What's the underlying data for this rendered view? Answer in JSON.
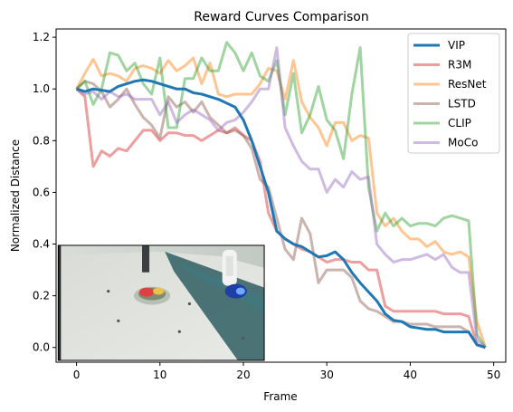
{
  "chart_data": {
    "type": "line",
    "title": "Reward Curves Comparison",
    "xlabel": "Frame",
    "ylabel": "Normalized Distance",
    "xlim": [
      -2.45,
      51.45
    ],
    "ylim": [
      -0.057,
      1.232
    ],
    "xticks": [
      0,
      10,
      20,
      30,
      40,
      50
    ],
    "yticks": [
      0.0,
      0.2,
      0.4,
      0.6,
      0.8,
      1.0,
      1.2
    ],
    "legend_position": "top-right",
    "grid": false,
    "inset_image": {
      "description": "robot arm with fruit plate on white table",
      "x_range": [
        -2.2,
        22.5
      ],
      "y_range": [
        -0.05,
        0.395
      ]
    },
    "x": [
      0,
      1,
      2,
      3,
      4,
      5,
      6,
      7,
      8,
      9,
      10,
      11,
      12,
      13,
      14,
      15,
      16,
      17,
      18,
      19,
      20,
      21,
      22,
      23,
      24,
      25,
      26,
      27,
      28,
      29,
      30,
      31,
      32,
      33,
      34,
      35,
      36,
      37,
      38,
      39,
      40,
      41,
      42,
      43,
      44,
      45,
      46,
      47,
      48,
      49
    ],
    "series": [
      {
        "name": "VIP",
        "color": "#1f77b4",
        "opacity": 1.0,
        "width": 3,
        "values": [
          1.0,
          0.99,
          1.0,
          0.995,
          0.99,
          1.01,
          1.02,
          1.03,
          1.035,
          1.03,
          1.02,
          1.01,
          1.0,
          1.0,
          0.985,
          0.98,
          0.97,
          0.96,
          0.945,
          0.93,
          0.88,
          0.8,
          0.7,
          0.6,
          0.45,
          0.42,
          0.4,
          0.39,
          0.37,
          0.35,
          0.355,
          0.37,
          0.34,
          0.29,
          0.25,
          0.215,
          0.18,
          0.13,
          0.105,
          0.1,
          0.08,
          0.075,
          0.07,
          0.07,
          0.06,
          0.06,
          0.06,
          0.06,
          0.01,
          0.0
        ]
      },
      {
        "name": "R3M",
        "color": "#d62728",
        "opacity": 0.45,
        "width": 3,
        "values": [
          1.0,
          0.97,
          0.7,
          0.76,
          0.74,
          0.77,
          0.76,
          0.8,
          0.84,
          0.84,
          0.8,
          0.83,
          0.83,
          0.82,
          0.82,
          0.8,
          0.82,
          0.84,
          0.83,
          0.85,
          0.82,
          0.8,
          0.72,
          0.52,
          0.45,
          0.42,
          0.4,
          0.38,
          0.37,
          0.35,
          0.33,
          0.34,
          0.34,
          0.33,
          0.33,
          0.3,
          0.3,
          0.16,
          0.14,
          0.14,
          0.14,
          0.14,
          0.14,
          0.14,
          0.13,
          0.13,
          0.13,
          0.12,
          0.01,
          0.0
        ]
      },
      {
        "name": "ResNet",
        "color": "#ff7f0e",
        "opacity": 0.45,
        "width": 3,
        "values": [
          1.0,
          1.06,
          1.115,
          1.05,
          1.06,
          1.05,
          1.03,
          1.08,
          1.09,
          1.08,
          1.06,
          1.11,
          1.07,
          1.09,
          1.12,
          1.02,
          1.1,
          0.98,
          0.97,
          0.98,
          0.98,
          0.98,
          1.02,
          1.08,
          1.07,
          0.96,
          1.11,
          0.95,
          0.89,
          0.85,
          0.78,
          0.87,
          0.87,
          0.8,
          0.82,
          0.81,
          0.52,
          0.47,
          0.5,
          0.45,
          0.42,
          0.42,
          0.39,
          0.41,
          0.37,
          0.36,
          0.37,
          0.35,
          0.1,
          0.0
        ]
      },
      {
        "name": "LSTD",
        "color": "#8c564b",
        "opacity": 0.45,
        "width": 3,
        "values": [
          1.0,
          1.03,
          1.02,
          0.99,
          0.93,
          0.96,
          1.0,
          0.94,
          0.89,
          0.86,
          0.81,
          0.97,
          0.93,
          0.95,
          0.91,
          0.95,
          0.89,
          0.86,
          0.83,
          0.84,
          0.82,
          0.77,
          0.65,
          0.62,
          0.5,
          0.38,
          0.34,
          0.5,
          0.44,
          0.25,
          0.3,
          0.3,
          0.3,
          0.27,
          0.18,
          0.15,
          0.14,
          0.12,
          0.1,
          0.1,
          0.09,
          0.09,
          0.09,
          0.08,
          0.08,
          0.08,
          0.08,
          0.06,
          0.01,
          0.0
        ]
      },
      {
        "name": "CLIP",
        "color": "#2ca02c",
        "opacity": 0.45,
        "width": 3,
        "values": [
          1.0,
          1.03,
          0.94,
          1.0,
          1.14,
          1.13,
          1.07,
          1.1,
          1.02,
          0.98,
          1.12,
          0.85,
          0.85,
          1.04,
          1.04,
          1.12,
          1.07,
          1.07,
          1.18,
          1.14,
          1.07,
          1.14,
          1.05,
          1.03,
          1.11,
          0.9,
          1.06,
          0.83,
          0.9,
          1.01,
          0.88,
          0.84,
          0.73,
          0.98,
          1.16,
          0.62,
          0.45,
          0.52,
          0.47,
          0.5,
          0.47,
          0.48,
          0.48,
          0.47,
          0.5,
          0.51,
          0.5,
          0.49,
          0.05,
          0.0
        ]
      },
      {
        "name": "MoCo",
        "color": "#9467bd",
        "opacity": 0.45,
        "width": 3,
        "values": [
          1.0,
          0.98,
          0.99,
          0.96,
          0.99,
          0.97,
          0.98,
          0.96,
          0.96,
          0.96,
          0.9,
          0.95,
          0.87,
          0.9,
          0.92,
          0.9,
          0.88,
          0.84,
          0.87,
          0.88,
          0.91,
          0.95,
          1.0,
          1.0,
          1.16,
          0.85,
          0.78,
          0.72,
          0.69,
          0.69,
          0.6,
          0.65,
          0.62,
          0.68,
          0.65,
          0.66,
          0.4,
          0.36,
          0.33,
          0.34,
          0.34,
          0.35,
          0.36,
          0.34,
          0.36,
          0.31,
          0.29,
          0.29,
          0.03,
          0.0
        ]
      }
    ]
  },
  "colors": {
    "axis": "#000000",
    "background": "#ffffff",
    "legend_border": "#cccccc"
  }
}
